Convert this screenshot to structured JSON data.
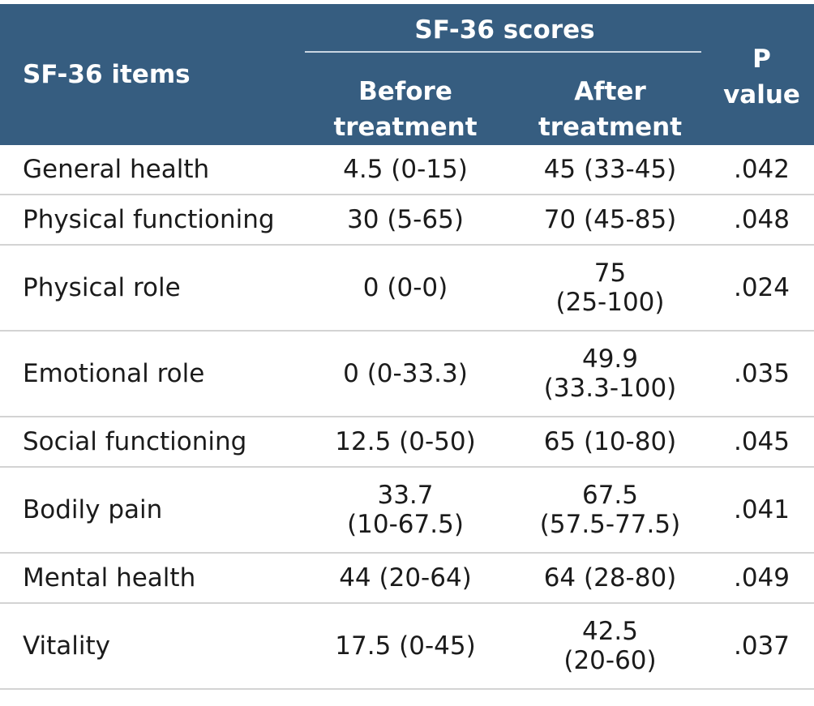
{
  "header": {
    "items": "SF-36 items",
    "group": "SF-36 scores",
    "before_l1": "Before",
    "before_l2": "treatment",
    "after_l1": "After",
    "after_l2": "treatment",
    "p_l1": "P",
    "p_l2": "value"
  },
  "rows": [
    {
      "item": "General health",
      "before": [
        "4.5 (0-15)"
      ],
      "after": [
        "45 (33-45)"
      ],
      "p": ".042"
    },
    {
      "item": "Physical functioning",
      "before": [
        "30 (5-65)"
      ],
      "after": [
        "70 (45-85)"
      ],
      "p": ".048"
    },
    {
      "item": "Physical role",
      "before": [
        "0 (0-0)"
      ],
      "after": [
        "75",
        "(25-100)"
      ],
      "p": ".024"
    },
    {
      "item": "Emotional role",
      "before": [
        "0 (0-33.3)"
      ],
      "after": [
        "49.9",
        "(33.3-100)"
      ],
      "p": ".035"
    },
    {
      "item": "Social functioning",
      "before": [
        "12.5 (0-50)"
      ],
      "after": [
        "65 (10-80)"
      ],
      "p": ".045"
    },
    {
      "item": "Bodily pain",
      "before": [
        "33.7",
        "(10-67.5)"
      ],
      "after": [
        "67.5",
        "(57.5-77.5)"
      ],
      "p": ".041"
    },
    {
      "item": "Mental health",
      "before": [
        "44 (20-64)"
      ],
      "after": [
        "64 (28-80)"
      ],
      "p": ".049"
    },
    {
      "item": "Vitality",
      "before": [
        "17.5 (0-45)"
      ],
      "after": [
        "42.5",
        "(20-60)"
      ],
      "p": ".037"
    }
  ]
}
